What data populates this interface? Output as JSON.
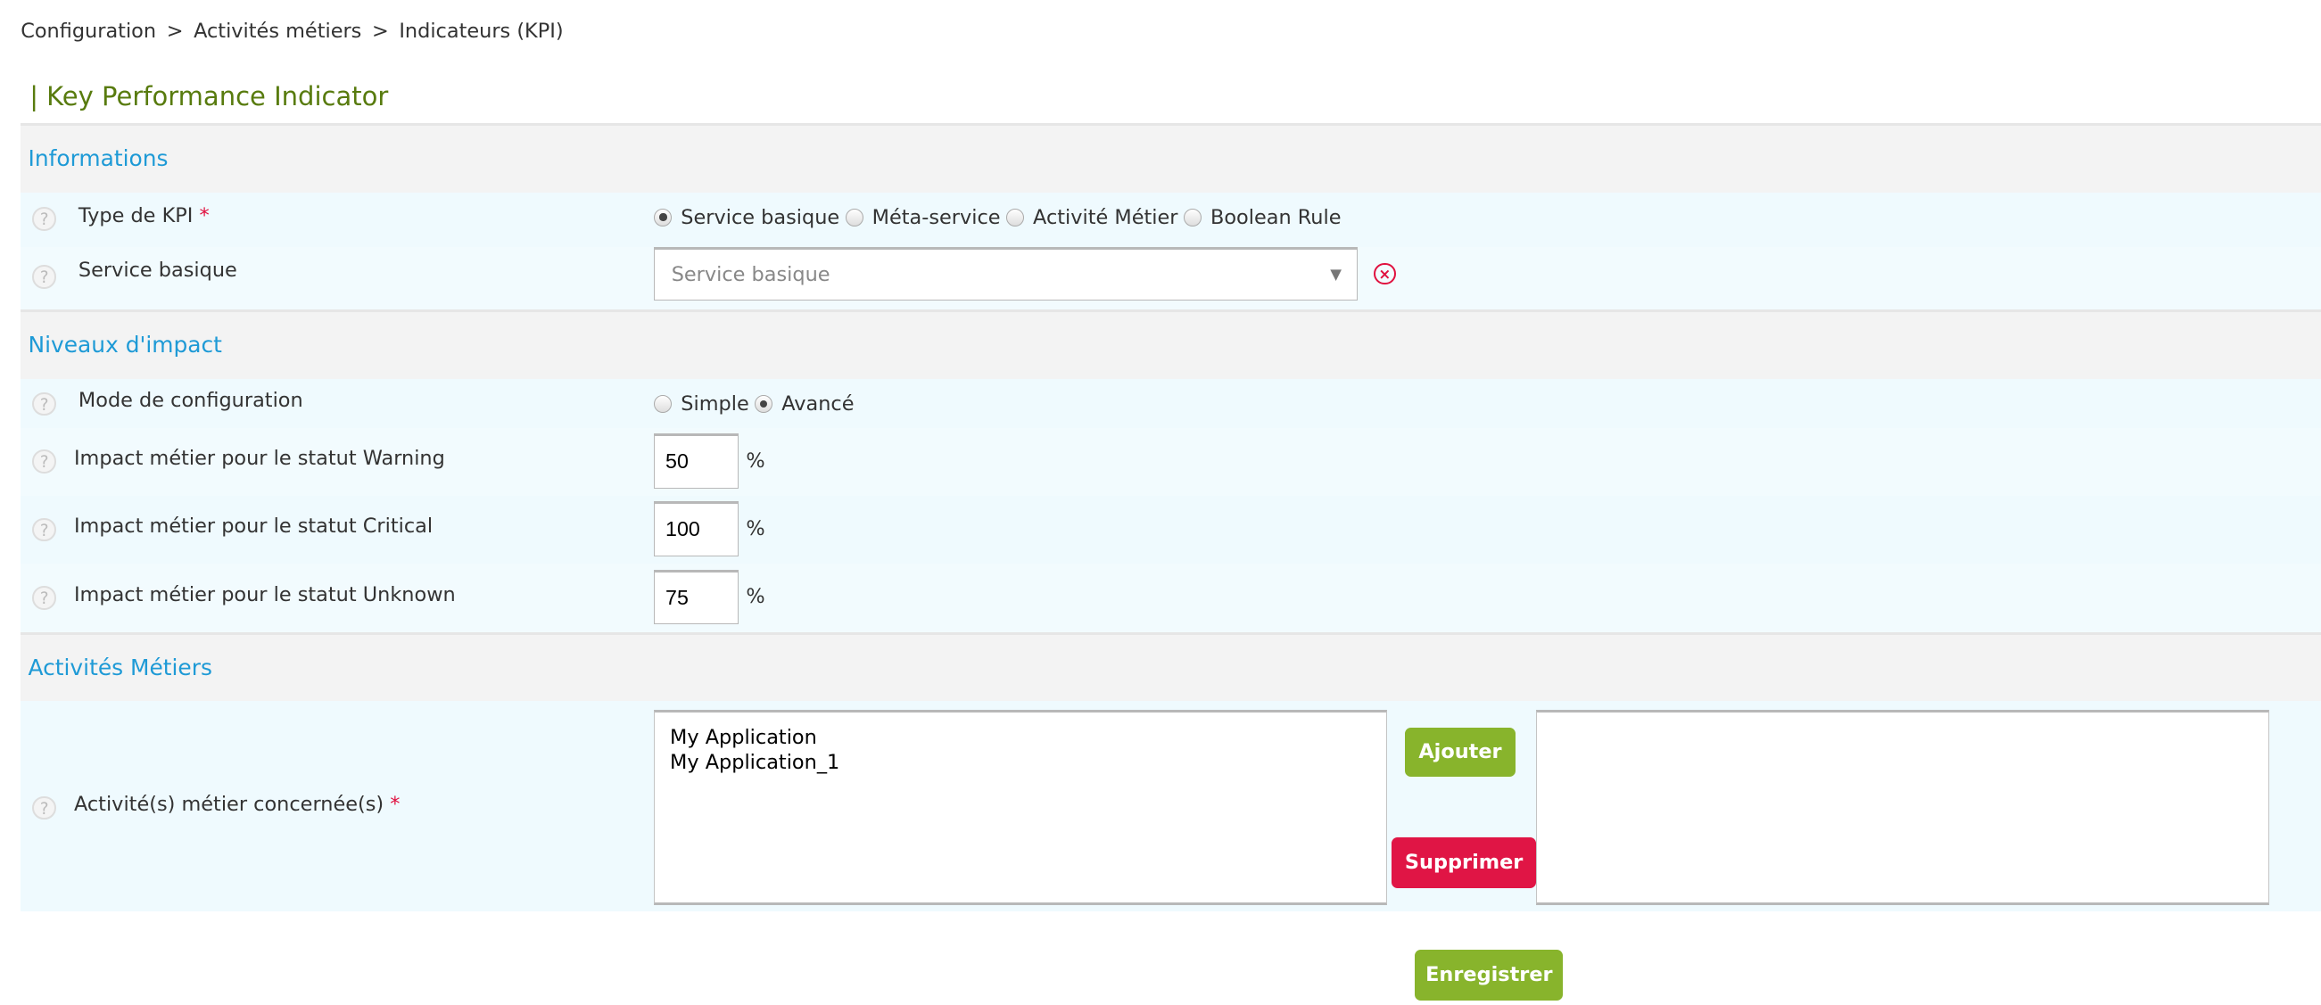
{
  "breadcrumb": [
    "Configuration",
    "Activités métiers",
    "Indicateurs (KPI)"
  ],
  "breadcrumb_sep": ">",
  "page_title": "| Key Performance Indicator",
  "sections": {
    "informations": "Informations",
    "impact": "Niveaux d'impact",
    "activities": "Activités Métiers"
  },
  "kpi_type": {
    "label": "Type de KPI",
    "required": "*",
    "options": [
      "Service basique",
      "Méta-service",
      "Activité Métier",
      "Boolean Rule"
    ],
    "selected": "Service basique"
  },
  "service": {
    "label": "Service basique",
    "placeholder": "Service basique"
  },
  "mode": {
    "label": "Mode de configuration",
    "options": [
      "Simple",
      "Avancé"
    ],
    "selected": "Avancé"
  },
  "impacts": [
    {
      "label": "Impact métier pour le statut Warning",
      "value": "50",
      "unit": "%"
    },
    {
      "label": "Impact métier pour le statut Critical",
      "value": "100",
      "unit": "%"
    },
    {
      "label": "Impact métier pour le statut Unknown",
      "value": "75",
      "unit": "%"
    }
  ],
  "ba": {
    "label": "Activité(s) métier concernée(s)",
    "required": "*",
    "available": [
      "My Application",
      "My Application_1"
    ],
    "selected": []
  },
  "buttons": {
    "add": "Ajouter",
    "remove": "Supprimer",
    "save": "Enregistrer"
  },
  "help_glyph": "?",
  "colors": {
    "title": "#587b0e",
    "section": "#1e9ad6",
    "green": "#88b42c",
    "red": "#e01545",
    "required": "#e0103f"
  }
}
